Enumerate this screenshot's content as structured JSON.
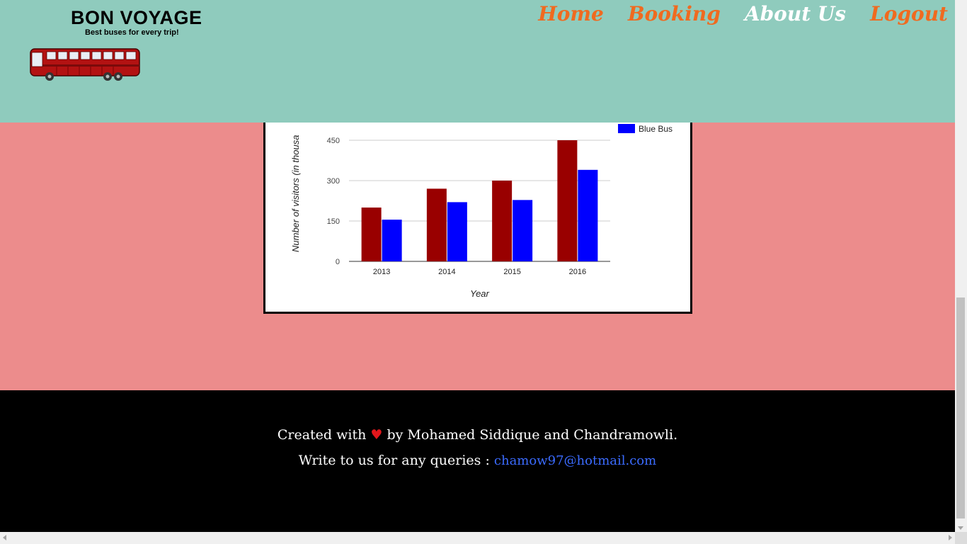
{
  "brand": {
    "title": "BON VOYAGE",
    "tagline": "Best buses for every trip!"
  },
  "nav": [
    {
      "label": "Home",
      "color": "#f06a1f"
    },
    {
      "label": "Booking",
      "color": "#f06a1f"
    },
    {
      "label": "About Us",
      "color": "#ffffff"
    },
    {
      "label": "Logout",
      "color": "#f06a1f"
    }
  ],
  "colors": {
    "header": "#8fcbbd",
    "main": "#ec8c8c",
    "footer": "#000000",
    "series1": "#990000",
    "series2": "#0000ff"
  },
  "chart_data": {
    "type": "bar",
    "categories": [
      "2013",
      "2014",
      "2015",
      "2016"
    ],
    "series": [
      {
        "name": "",
        "color": "#990000",
        "values": [
          200,
          270,
          300,
          450
        ]
      },
      {
        "name": "Blue Bus",
        "color": "#0000ff",
        "values": [
          155,
          220,
          228,
          340
        ]
      }
    ],
    "xlabel": "Year",
    "ylabel": "Number of visitors (in thousa",
    "ylim": [
      0,
      450
    ],
    "yticks": [
      "0",
      "150",
      "300",
      "450"
    ],
    "legend": "right",
    "grid": true
  },
  "footer": {
    "line1_before": "Created with",
    "heart": "♥",
    "line1_after": "by Mohamed Siddique and Chandramowli.",
    "line2_text": "Write to us for any queries :",
    "email": "chamow97@hotmail.com"
  }
}
